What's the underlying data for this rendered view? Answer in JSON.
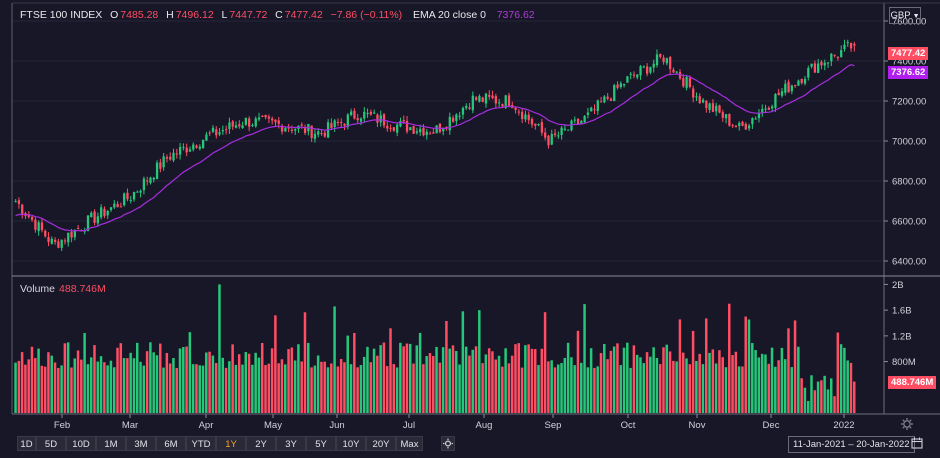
{
  "legend": {
    "symbol": "FTSE 100 INDEX",
    "open_label": "O",
    "open": "7485.28",
    "high_label": "H",
    "high": "7496.12",
    "low_label": "L",
    "low": "7447.72",
    "close_label": "C",
    "close": "7477.42",
    "change": "−7.86 (−0.11%)",
    "ema_label": "EMA 20 close 0",
    "ema_value": "7376.62"
  },
  "volume_legend": {
    "label": "Volume",
    "value": "488.746M"
  },
  "currency": "GBP",
  "price_tags": {
    "close": "7477.42",
    "ema": "7376.62",
    "volume": "488.746M"
  },
  "range_tabs": [
    "1D",
    "5D",
    "10D",
    "1M",
    "3M",
    "6M",
    "YTD",
    "1Y",
    "2Y",
    "3Y",
    "5Y",
    "10Y",
    "20Y",
    "Max"
  ],
  "selected_tab": "1Y",
  "date_range": "11-Jan-2021  –  20-Jan-2022",
  "colors": {
    "up": "#26c77a",
    "down": "#ff4d63",
    "ema": "#a62ee0",
    "background": "#181727"
  },
  "chart_data": [
    {
      "type": "candlestick",
      "title": "FTSE 100 INDEX",
      "y_ticks": [
        6400,
        6600,
        6800,
        7000,
        7200,
        7400,
        7600
      ],
      "ylim": [
        6330,
        7680
      ],
      "x_labels": [
        "Feb",
        "Mar",
        "Apr",
        "May",
        "Jun",
        "Jul",
        "Aug",
        "Sep",
        "Oct",
        "Nov",
        "Dec",
        "2022"
      ],
      "series": [
        {
          "name": "EMA 20 close 0",
          "last": 7376.62
        }
      ],
      "monthly_closes": [
        6700,
        6480,
        6610,
        6720,
        6920,
        7020,
        7100,
        7080,
        7040,
        7140,
        7080,
        7050,
        7210,
        7200,
        7000,
        7120,
        7300,
        7420,
        7200,
        7060,
        7230,
        7380,
        7480
      ],
      "last": {
        "open": 7485.28,
        "high": 7496.12,
        "low": 7447.72,
        "close": 7477.42
      }
    },
    {
      "type": "bar",
      "title": "Volume",
      "y_ticks": [
        "800M",
        "1.2B",
        "1.6B",
        "2B"
      ],
      "ylim": [
        0,
        2100
      ],
      "last_value_millions": 488.746
    }
  ]
}
